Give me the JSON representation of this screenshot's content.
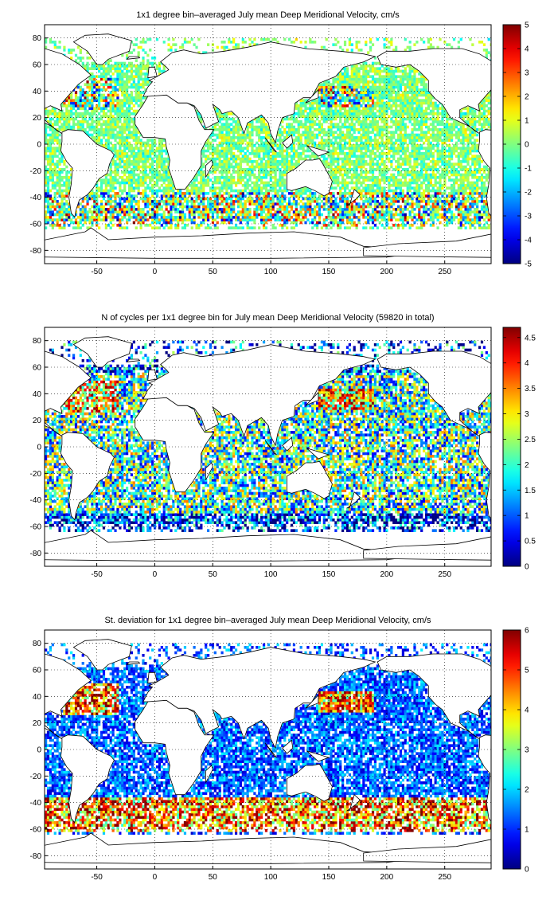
{
  "chart_data": [
    {
      "type": "heatmap",
      "title": "1x1 degree bin–averaged July mean Deep Meridional Velocity, cm/s",
      "xlim": [
        -95,
        290
      ],
      "ylim": [
        -90,
        90
      ],
      "xticks": [
        -50,
        0,
        50,
        100,
        150,
        200,
        250
      ],
      "yticks": [
        80,
        60,
        40,
        20,
        0,
        -20,
        -40,
        -60,
        -80
      ],
      "grid": true,
      "colorbar": {
        "min": -5,
        "max": 5,
        "ticks": [
          5,
          4,
          3,
          2,
          1,
          0,
          -1,
          -2,
          -3,
          -4,
          -5
        ]
      },
      "colormap": "jet",
      "field": "signed"
    },
    {
      "type": "heatmap",
      "title": "N of cycles per 1x1 degree bin for July mean Deep Meridional Velocity (59820 in total)",
      "xlim": [
        -95,
        290
      ],
      "ylim": [
        -90,
        90
      ],
      "xticks": [
        -50,
        0,
        50,
        100,
        150,
        200,
        250
      ],
      "yticks": [
        80,
        60,
        40,
        20,
        0,
        -20,
        -40,
        -60,
        -80
      ],
      "grid": true,
      "colorbar": {
        "min": 0,
        "max": 4.7,
        "ticks": [
          4.5,
          4,
          3.5,
          3,
          2.5,
          2,
          1.5,
          1,
          0.5,
          0
        ]
      },
      "colormap": "jet",
      "field": "count"
    },
    {
      "type": "heatmap",
      "title": "St. deviation for 1x1 degree bin–averaged July mean Deep Meridional Velocity, cm/s",
      "xlim": [
        -95,
        290
      ],
      "ylim": [
        -90,
        90
      ],
      "xticks": [
        -50,
        0,
        50,
        100,
        150,
        200,
        250
      ],
      "yticks": [
        80,
        60,
        40,
        20,
        0,
        -20,
        -40,
        -60,
        -80
      ],
      "grid": true,
      "colorbar": {
        "min": 0,
        "max": 6,
        "ticks": [
          6,
          5,
          4,
          3,
          2,
          1,
          0
        ]
      },
      "colormap": "jet",
      "field": "stddev"
    }
  ]
}
